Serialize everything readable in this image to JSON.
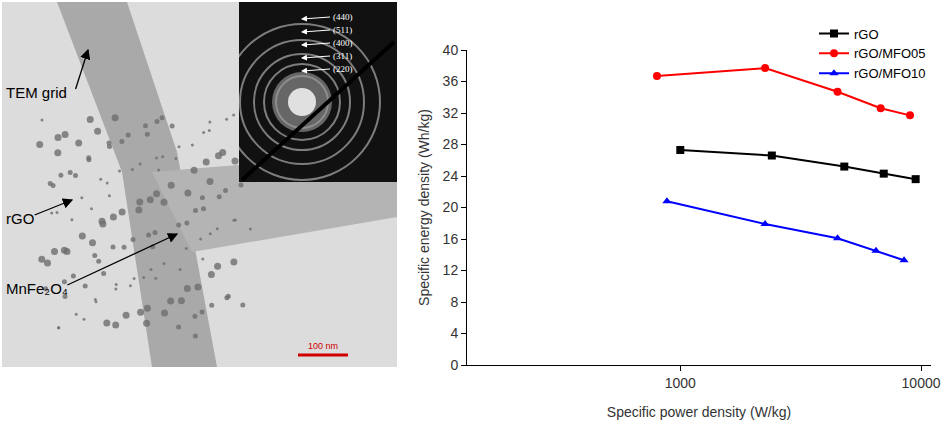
{
  "chart_data": {
    "type": "line",
    "xlabel": "Specific power density (W/kg)",
    "ylabel": "Specific energy density (Wh/kg)",
    "log": "x",
    "grid": false,
    "legend": "upper right",
    "xlim": [
      130,
      11000
    ],
    "xticks": [
      1000,
      10000
    ],
    "ylim": [
      0,
      40
    ],
    "yticks": [
      0,
      4,
      8,
      12,
      16,
      20,
      24,
      28,
      32,
      36,
      40
    ],
    "series": [
      {
        "name": "rGO",
        "color": "#000000",
        "marker": "square",
        "line_style": "solid",
        "x": [
          1000,
          2400,
          4800,
          7000,
          9500
        ],
        "values": [
          27.3,
          26.6,
          25.2,
          24.3,
          23.6
        ]
      },
      {
        "name": "rGO/MFO05",
        "color": "#ff0000",
        "marker": "circle",
        "line_style": "solid",
        "x": [
          800,
          2250,
          4500,
          6800,
          9000
        ],
        "values": [
          36.7,
          37.7,
          34.7,
          32.6,
          31.7
        ]
      },
      {
        "name": "rGO/MFO10",
        "color": "#0000ff",
        "marker": "triangle-up",
        "line_style": "solid",
        "x": [
          880,
          2250,
          4500,
          6500,
          8500
        ],
        "values": [
          20.8,
          17.9,
          16.1,
          14.5,
          13.3
        ]
      }
    ]
  },
  "image_panel": {
    "labels": [
      "TEM grid",
      "rGO",
      "MnFe₂O₄"
    ],
    "diffraction_rings": [
      "(440)",
      "(511)",
      "(400)",
      "(311)",
      "(220)"
    ],
    "scale_bar": "100 nm"
  }
}
